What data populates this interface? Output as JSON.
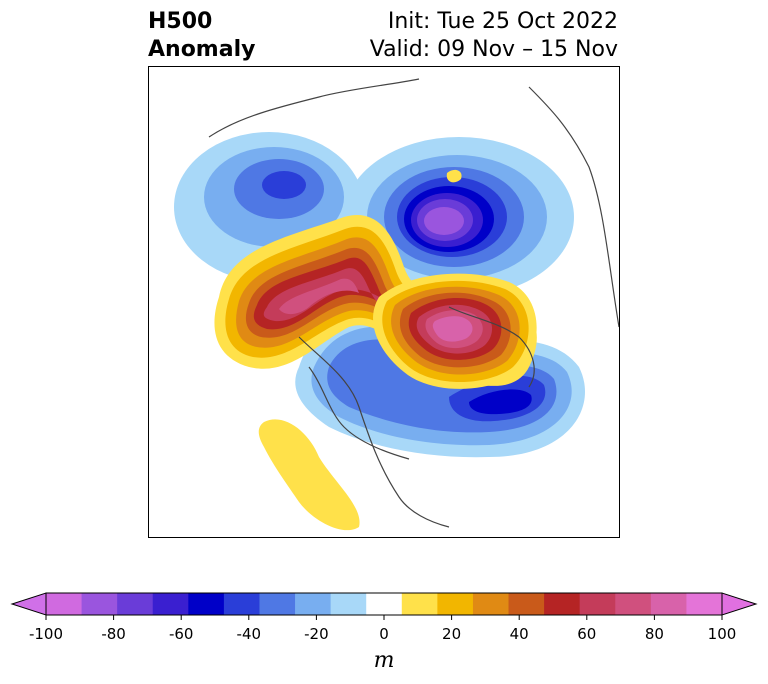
{
  "title": {
    "left_line1": "H500",
    "left_line2": "Anomaly",
    "right_line1": "Init: Tue 25 Oct 2022",
    "right_line2": "Valid: 09 Nov – 15 Nov"
  },
  "colorbar": {
    "unit": "m",
    "ticks": [
      "-100",
      "-80",
      "-60",
      "-40",
      "-20",
      "0",
      "20",
      "40",
      "60",
      "80",
      "100"
    ],
    "colors": [
      "#d06ae0",
      "#9a55de",
      "#6a3cd8",
      "#3a1fd0",
      "#0000c8",
      "#2a3ed8",
      "#4f78e4",
      "#78aef0",
      "#a8d8f8",
      "#ffffff",
      "#ffe14a",
      "#f2b600",
      "#e08a14",
      "#c95a1a",
      "#b52424",
      "#c43c5a",
      "#d0507e",
      "#d862aa",
      "#e474d8"
    ],
    "extend_low_color": "#d070e8",
    "extend_high_color": "#e070e0"
  },
  "map_features": [
    {
      "name": "ural-negative-center",
      "sign": "negative",
      "peak": "-100"
    },
    {
      "name": "alaska-negative",
      "sign": "negative",
      "peak": "-60"
    },
    {
      "name": "canada-negative",
      "sign": "negative",
      "peak": "-80"
    },
    {
      "name": "siberia-positive-ridge",
      "sign": "positive",
      "peak": "80"
    },
    {
      "name": "greenland-positive",
      "sign": "positive",
      "peak": "100"
    },
    {
      "name": "southwest-us-positive",
      "sign": "positive",
      "peak": "20"
    }
  ]
}
